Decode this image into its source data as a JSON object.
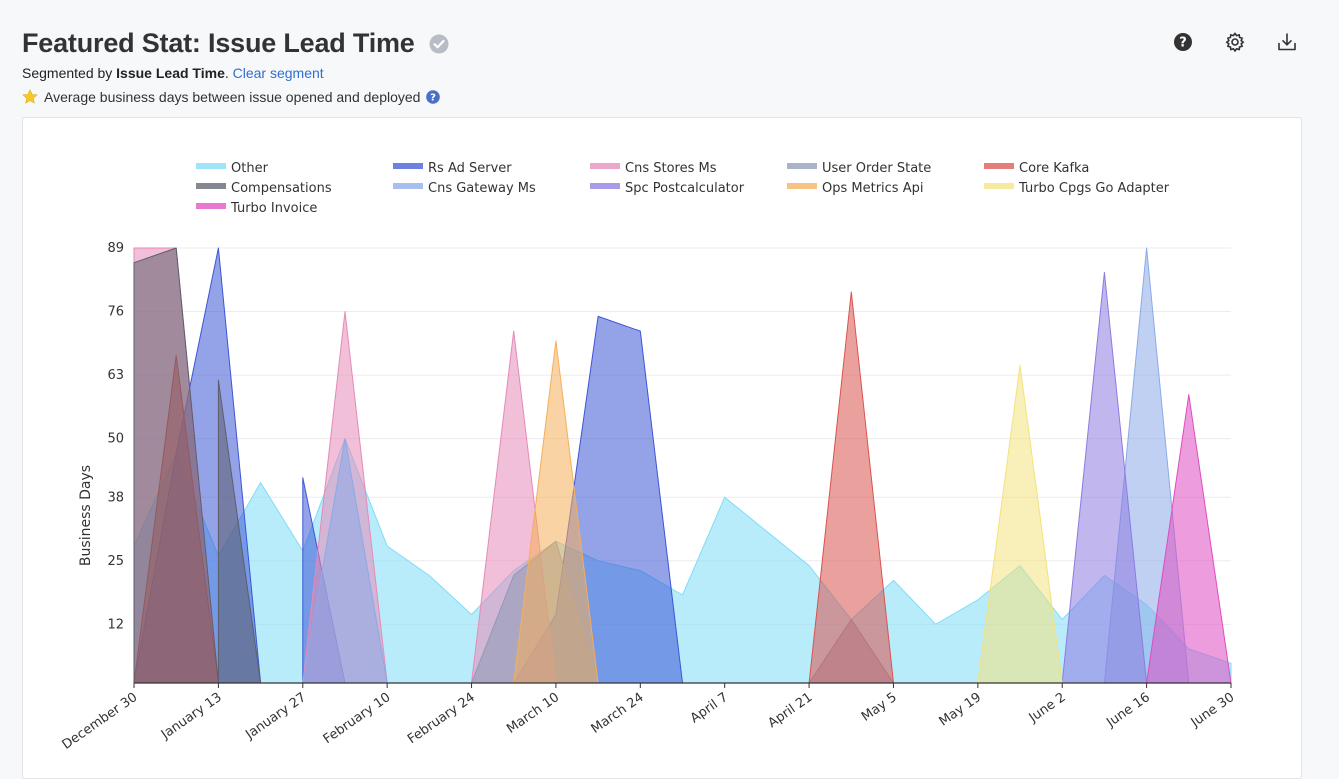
{
  "header": {
    "title": "Featured Stat: Issue Lead Time",
    "segment_prefix": "Segmented by ",
    "segment_name": "Issue Lead Time",
    "segment_suffix": ". ",
    "clear_segment": "Clear segment",
    "description": "Average business days between issue opened and deployed"
  },
  "icons": {
    "title_badge": "check-circle-icon",
    "star": "star-icon",
    "desc_help": "question-circle-icon",
    "toolbar": [
      "help-icon",
      "settings-icon",
      "download-icon"
    ]
  },
  "chart_data": {
    "type": "area",
    "ylabel": "Business Days",
    "ylim": [
      0,
      89
    ],
    "yticks": [
      12,
      25,
      38,
      50,
      63,
      76,
      89
    ],
    "xlim": [
      0,
      26
    ],
    "x_tick_positions": [
      0,
      2,
      4,
      6,
      8,
      10,
      12,
      14,
      16,
      18,
      20,
      22,
      24,
      26
    ],
    "x_tick_labels": [
      "December 30",
      "January 13",
      "January 27",
      "February 10",
      "February 24",
      "March 10",
      "March 24",
      "April 7",
      "April 21",
      "May 5",
      "May 19",
      "June 2",
      "June 16",
      "June 30"
    ],
    "x_unit": "week index (1 week per step, starting December 30)",
    "grid": true,
    "legend_position": "top",
    "series": [
      {
        "name": "Other",
        "color": "#7fdcf7",
        "points": [
          [
            0,
            28
          ],
          [
            1,
            47
          ],
          [
            2,
            26
          ],
          [
            3,
            41
          ],
          [
            4,
            27
          ],
          [
            5,
            50
          ],
          [
            6,
            28
          ],
          [
            7,
            22
          ],
          [
            8,
            14
          ],
          [
            9,
            23
          ],
          [
            10,
            29
          ],
          [
            11,
            25
          ],
          [
            12,
            23
          ],
          [
            13,
            18
          ],
          [
            14,
            38
          ],
          [
            15,
            31
          ],
          [
            16,
            24
          ],
          [
            17,
            13
          ],
          [
            18,
            21
          ],
          [
            19,
            12
          ],
          [
            20,
            17
          ],
          [
            21,
            24
          ],
          [
            22,
            13
          ],
          [
            23,
            22
          ],
          [
            24,
            16
          ],
          [
            25,
            7
          ],
          [
            26,
            4
          ]
        ]
      },
      {
        "name": "Rs Ad Server",
        "color": "#3d55d6",
        "points": [
          [
            0,
            0
          ],
          [
            1,
            47
          ],
          [
            2,
            89
          ],
          [
            3,
            0
          ],
          [
            4,
            0
          ],
          [
            4,
            42
          ],
          [
            5,
            0
          ],
          [
            9,
            0
          ],
          [
            10,
            14
          ],
          [
            11,
            75
          ],
          [
            12,
            72
          ],
          [
            13,
            0
          ]
        ]
      },
      {
        "name": "Cns Stores Ms",
        "color": "#e58ab8",
        "points": [
          [
            0,
            89
          ],
          [
            1,
            89
          ],
          [
            2,
            0
          ],
          [
            4,
            0
          ],
          [
            5,
            76
          ],
          [
            6,
            0
          ],
          [
            8,
            0
          ],
          [
            9,
            72
          ],
          [
            10,
            0
          ]
        ]
      },
      {
        "name": "User Order State",
        "color": "#8d9ab5",
        "points": [
          [
            8,
            0
          ],
          [
            9,
            22
          ],
          [
            10,
            29
          ],
          [
            11,
            0
          ],
          [
            16,
            0
          ],
          [
            17,
            13
          ],
          [
            18,
            0
          ]
        ]
      },
      {
        "name": "Core Kafka",
        "color": "#d9534f",
        "points": [
          [
            0,
            0
          ],
          [
            1,
            67
          ],
          [
            2,
            0
          ],
          [
            16,
            0
          ],
          [
            17,
            80
          ],
          [
            18,
            0
          ]
        ]
      },
      {
        "name": "Compensations",
        "color": "#5c5f6b",
        "points": [
          [
            0,
            86
          ],
          [
            1,
            89
          ],
          [
            2,
            0
          ],
          [
            2,
            62
          ],
          [
            3,
            0
          ]
        ]
      },
      {
        "name": "Cns Gateway Ms",
        "color": "#8aaae8",
        "points": [
          [
            4,
            0
          ],
          [
            5,
            50
          ],
          [
            6,
            0
          ],
          [
            23,
            0
          ],
          [
            24,
            89
          ],
          [
            25,
            0
          ]
        ]
      },
      {
        "name": "Spc Postcalculator",
        "color": "#8e7ae0",
        "points": [
          [
            22,
            0
          ],
          [
            23,
            84
          ],
          [
            24,
            0
          ]
        ]
      },
      {
        "name": "Ops Metrics Api",
        "color": "#f6ae5a",
        "points": [
          [
            9,
            0
          ],
          [
            10,
            70
          ],
          [
            11,
            0
          ]
        ]
      },
      {
        "name": "Turbo Cpgs Go Adapter",
        "color": "#f4e27d",
        "points": [
          [
            20,
            0
          ],
          [
            21,
            65
          ],
          [
            22,
            0
          ]
        ]
      },
      {
        "name": "Turbo Invoice",
        "color": "#df4cc1",
        "points": [
          [
            24,
            0
          ],
          [
            25,
            59
          ],
          [
            26,
            0
          ]
        ]
      }
    ]
  }
}
